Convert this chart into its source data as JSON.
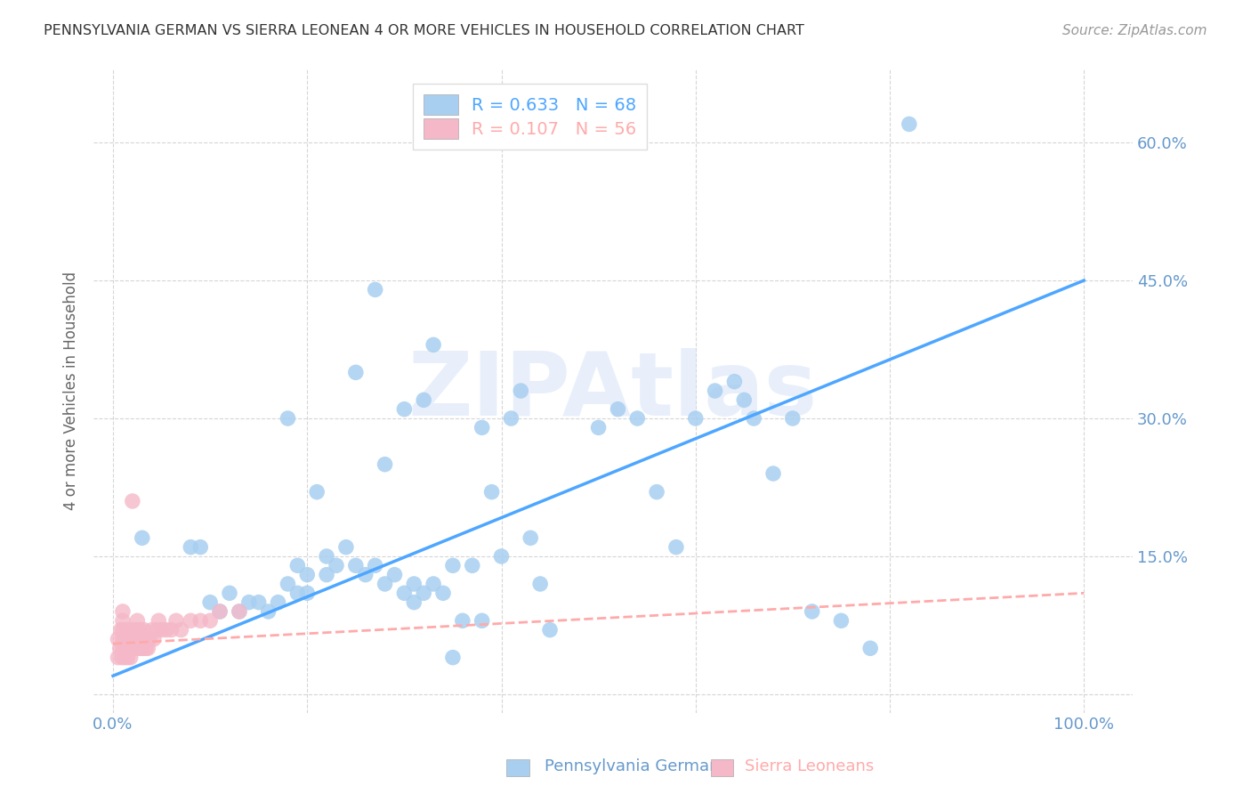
{
  "title": "PENNSYLVANIA GERMAN VS SIERRA LEONEAN 4 OR MORE VEHICLES IN HOUSEHOLD CORRELATION CHART",
  "source": "Source: ZipAtlas.com",
  "ylabel": "4 or more Vehicles in Household",
  "x_ticks": [
    0.0,
    0.2,
    0.4,
    0.6,
    0.8,
    1.0
  ],
  "x_tick_labels": [
    "0.0%",
    "",
    "",
    "",
    "",
    "100.0%"
  ],
  "y_ticks": [
    0.0,
    0.15,
    0.3,
    0.45,
    0.6
  ],
  "y_tick_labels_right": [
    "",
    "15.0%",
    "30.0%",
    "45.0%",
    "60.0%"
  ],
  "xlim": [
    -0.02,
    1.05
  ],
  "ylim": [
    -0.02,
    0.68
  ],
  "legend_label1": "Pennsylvania Germans",
  "legend_label2": "Sierra Leoneans",
  "blue_color": "#a8cff0",
  "pink_color": "#f5b8c8",
  "line_blue": "#4da6ff",
  "line_pink": "#ffaaaa",
  "watermark": "ZIPAtlas",
  "axis_tick_color": "#6699cc",
  "blue_intercept": 0.02,
  "blue_slope": 0.43,
  "pink_intercept": 0.055,
  "pink_slope": 0.055,
  "blue_x": [
    0.82,
    0.03,
    0.08,
    0.1,
    0.12,
    0.13,
    0.14,
    0.15,
    0.16,
    0.17,
    0.18,
    0.19,
    0.2,
    0.21,
    0.22,
    0.23,
    0.24,
    0.25,
    0.26,
    0.27,
    0.28,
    0.29,
    0.3,
    0.31,
    0.32,
    0.33,
    0.34,
    0.35,
    0.36,
    0.37,
    0.38,
    0.39,
    0.4,
    0.41,
    0.42,
    0.43,
    0.44,
    0.45,
    0.5,
    0.52,
    0.54,
    0.56,
    0.58,
    0.6,
    0.62,
    0.64,
    0.65,
    0.66,
    0.68,
    0.7,
    0.72,
    0.75,
    0.78,
    0.27,
    0.25,
    0.32,
    0.33,
    0.18,
    0.19,
    0.2,
    0.3,
    0.31,
    0.35,
    0.22,
    0.28,
    0.09,
    0.11,
    0.38
  ],
  "blue_y": [
    0.62,
    0.17,
    0.16,
    0.1,
    0.11,
    0.09,
    0.1,
    0.1,
    0.09,
    0.1,
    0.12,
    0.11,
    0.13,
    0.22,
    0.15,
    0.14,
    0.16,
    0.14,
    0.13,
    0.14,
    0.25,
    0.13,
    0.31,
    0.1,
    0.11,
    0.12,
    0.11,
    0.14,
    0.08,
    0.14,
    0.29,
    0.22,
    0.15,
    0.3,
    0.33,
    0.17,
    0.12,
    0.07,
    0.29,
    0.31,
    0.3,
    0.22,
    0.16,
    0.3,
    0.33,
    0.34,
    0.32,
    0.3,
    0.24,
    0.3,
    0.09,
    0.08,
    0.05,
    0.44,
    0.35,
    0.32,
    0.38,
    0.3,
    0.14,
    0.11,
    0.11,
    0.12,
    0.04,
    0.13,
    0.12,
    0.16,
    0.09,
    0.08
  ],
  "pink_x": [
    0.005,
    0.005,
    0.007,
    0.008,
    0.009,
    0.01,
    0.01,
    0.01,
    0.01,
    0.01,
    0.012,
    0.012,
    0.013,
    0.015,
    0.015,
    0.016,
    0.017,
    0.018,
    0.019,
    0.02,
    0.02,
    0.02,
    0.021,
    0.022,
    0.023,
    0.024,
    0.025,
    0.025,
    0.025,
    0.026,
    0.027,
    0.028,
    0.03,
    0.03,
    0.031,
    0.032,
    0.033,
    0.034,
    0.035,
    0.036,
    0.038,
    0.04,
    0.042,
    0.045,
    0.047,
    0.05,
    0.055,
    0.06,
    0.065,
    0.07,
    0.08,
    0.09,
    0.1,
    0.11,
    0.13,
    0.02
  ],
  "pink_y": [
    0.04,
    0.06,
    0.05,
    0.07,
    0.04,
    0.05,
    0.06,
    0.07,
    0.08,
    0.09,
    0.04,
    0.06,
    0.05,
    0.04,
    0.07,
    0.05,
    0.06,
    0.04,
    0.06,
    0.05,
    0.07,
    0.06,
    0.05,
    0.06,
    0.05,
    0.06,
    0.05,
    0.07,
    0.08,
    0.06,
    0.05,
    0.07,
    0.05,
    0.06,
    0.05,
    0.07,
    0.06,
    0.05,
    0.06,
    0.05,
    0.06,
    0.07,
    0.06,
    0.07,
    0.08,
    0.07,
    0.07,
    0.07,
    0.08,
    0.07,
    0.08,
    0.08,
    0.08,
    0.09,
    0.09,
    0.21
  ]
}
